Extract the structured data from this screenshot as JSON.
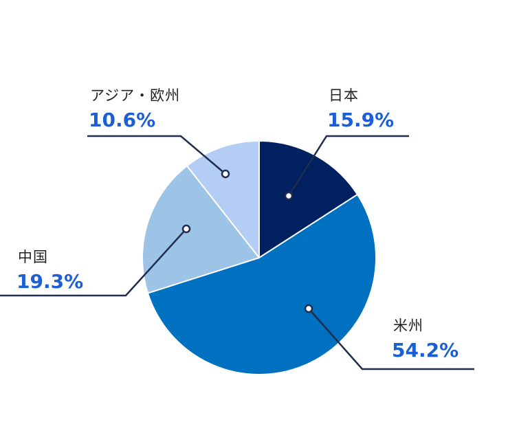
{
  "chart_data": {
    "type": "pie",
    "title": "",
    "start_angle_deg": 0,
    "direction": "clockwise",
    "slices": [
      {
        "label": "日本",
        "value": 15.9,
        "value_label": "15.9%",
        "color": "#002060"
      },
      {
        "label": "米州",
        "value": 54.2,
        "value_label": "54.2%",
        "color": "#0070c0"
      },
      {
        "label": "中国",
        "value": 19.3,
        "value_label": "19.3%",
        "color": "#9dc3e6"
      },
      {
        "label": "アジア・欧州",
        "value": 10.6,
        "value_label": "10.6%",
        "color": "#b4cdf5"
      }
    ],
    "leader_line_color": "#1f2d4f",
    "value_label_color": "#1a5fd6",
    "category_label_color": "#222222"
  }
}
